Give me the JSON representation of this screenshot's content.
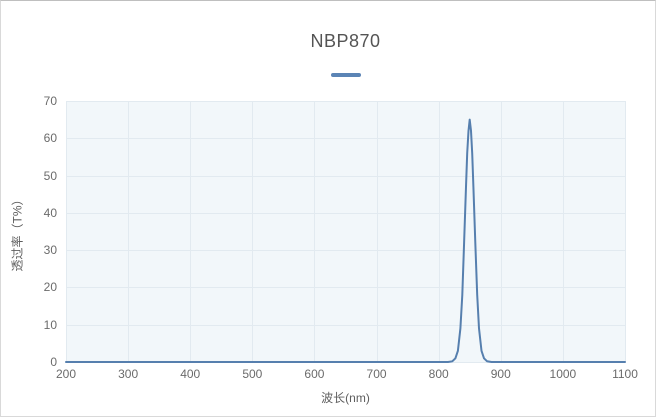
{
  "window": {
    "title": "NBP870"
  },
  "legend": {
    "items": [
      {
        "label": "",
        "swatch": "line-dash",
        "color": "#5b84b5"
      }
    ]
  },
  "colors": {
    "series_line": "#567fae",
    "plot_background": "#f2f7fa",
    "gridline": "#e2eaf0",
    "title_text": "#545454",
    "tick_text": "#6b6b6b"
  },
  "chart_data": {
    "type": "line",
    "title": "NBP870",
    "xlabel": "波长(nm)",
    "ylabel": "透过率（T%）",
    "xlim": [
      200,
      1100
    ],
    "ylim": [
      0,
      70
    ],
    "x_ticks": [
      200,
      300,
      400,
      500,
      600,
      700,
      800,
      900,
      1000,
      1100
    ],
    "y_ticks": [
      0,
      10,
      20,
      30,
      40,
      50,
      60,
      70
    ],
    "grid": true,
    "legend_position": "top",
    "peak": {
      "center_nm": 850,
      "max_transmittance_pct": 65,
      "fwhm_nm": 19
    },
    "series": [
      {
        "name": "",
        "color": "#567fae",
        "points": [
          [
            200,
            0
          ],
          [
            300,
            0
          ],
          [
            400,
            0
          ],
          [
            500,
            0
          ],
          [
            600,
            0
          ],
          [
            700,
            0
          ],
          [
            800,
            0
          ],
          [
            815,
            0
          ],
          [
            822,
            0.2
          ],
          [
            827,
            1
          ],
          [
            831,
            3
          ],
          [
            835,
            9
          ],
          [
            838,
            18
          ],
          [
            841,
            32
          ],
          [
            844,
            47
          ],
          [
            846,
            56
          ],
          [
            848,
            62
          ],
          [
            850,
            65
          ],
          [
            852,
            62
          ],
          [
            854,
            56
          ],
          [
            856,
            47
          ],
          [
            859,
            32
          ],
          [
            862,
            18
          ],
          [
            865,
            9
          ],
          [
            869,
            3
          ],
          [
            873,
            1
          ],
          [
            878,
            0.2
          ],
          [
            885,
            0
          ],
          [
            900,
            0
          ],
          [
            1000,
            0
          ],
          [
            1100,
            0
          ]
        ]
      }
    ]
  }
}
